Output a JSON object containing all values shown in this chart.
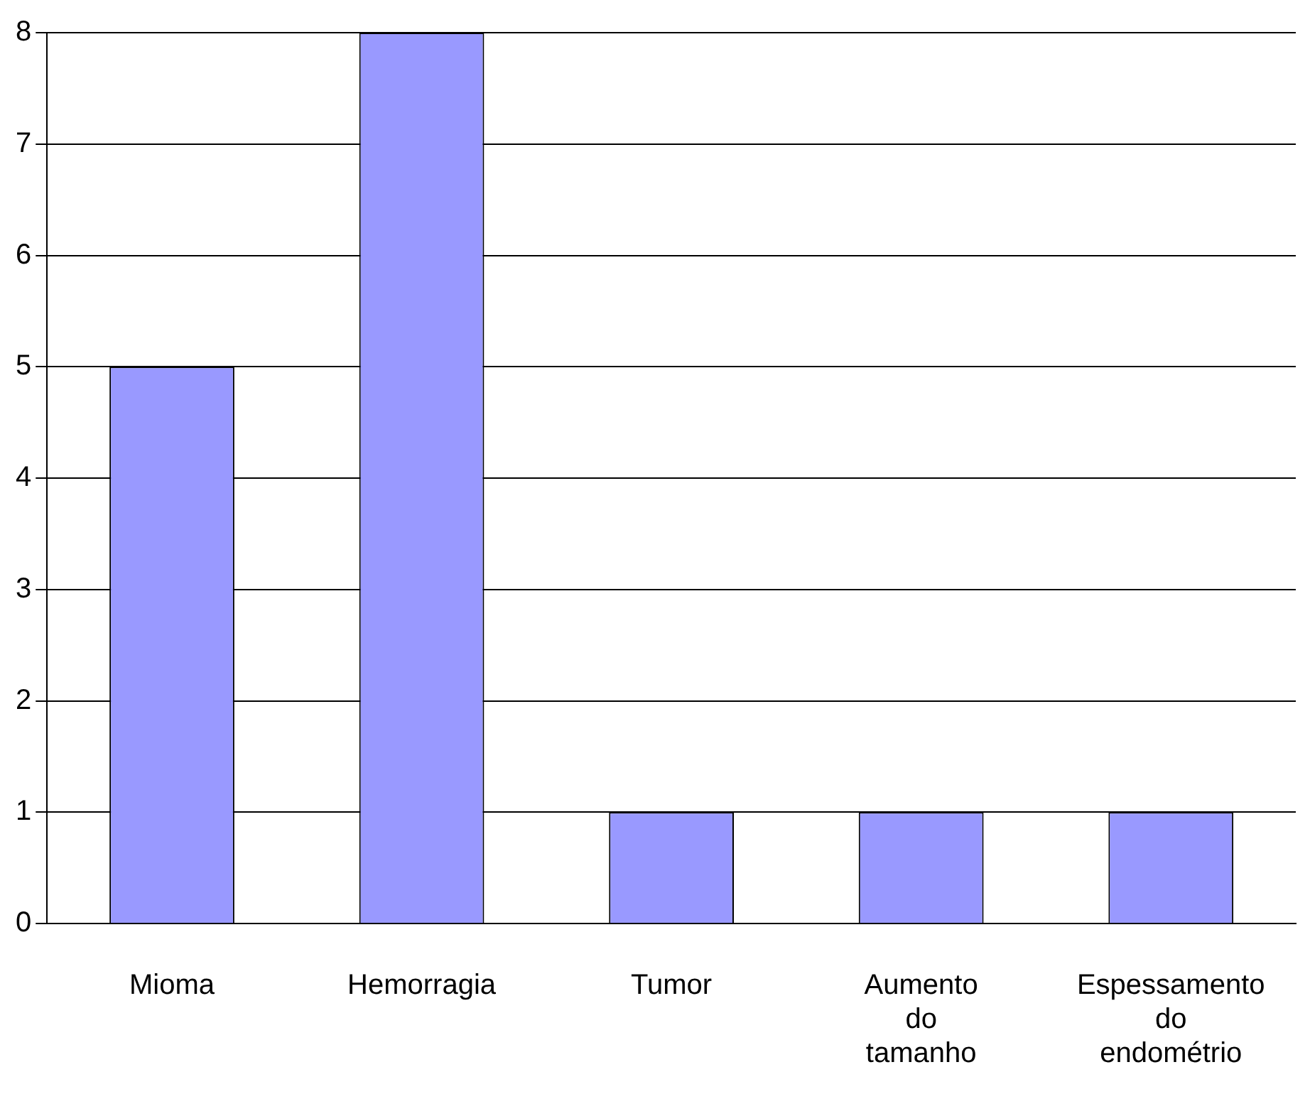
{
  "chart_data": {
    "type": "bar",
    "categories": [
      "Mioma",
      "Hemorragia",
      "Tumor",
      "Aumento do tamanho",
      "Espessamento do endométrio"
    ],
    "values": [
      5,
      8,
      1,
      1,
      1
    ],
    "color": "#9999ff",
    "ylim": [
      0,
      8
    ],
    "yticks": [
      0,
      1,
      2,
      3,
      4,
      5,
      6,
      7,
      8
    ],
    "grid": "y",
    "legend": false
  }
}
